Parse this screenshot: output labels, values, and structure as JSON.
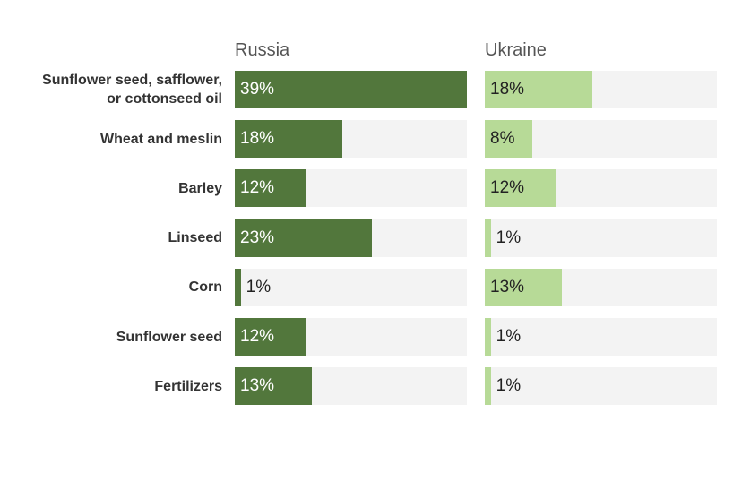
{
  "chart_data": {
    "type": "bar",
    "orientation": "horizontal",
    "x_max": 39,
    "categories": [
      "Sunflower seed, safflower,\nor cottonseed oil",
      "Wheat and meslin",
      "Barley",
      "Linseed",
      "Corn",
      "Sunflower seed",
      "Fertilizers"
    ],
    "series": [
      {
        "name": "Russia",
        "color": "#52773c",
        "values": [
          39,
          18,
          12,
          23,
          1,
          12,
          13
        ],
        "labels": [
          "39%",
          "18%",
          "12%",
          "23%",
          "1%",
          "12%",
          "13%"
        ]
      },
      {
        "name": "Ukraine",
        "color": "#b7da97",
        "values": [
          18,
          8,
          12,
          1,
          13,
          1,
          1
        ],
        "labels": [
          "18%",
          "8%",
          "12%",
          "1%",
          "13%",
          "1%",
          "1%"
        ]
      }
    ]
  }
}
